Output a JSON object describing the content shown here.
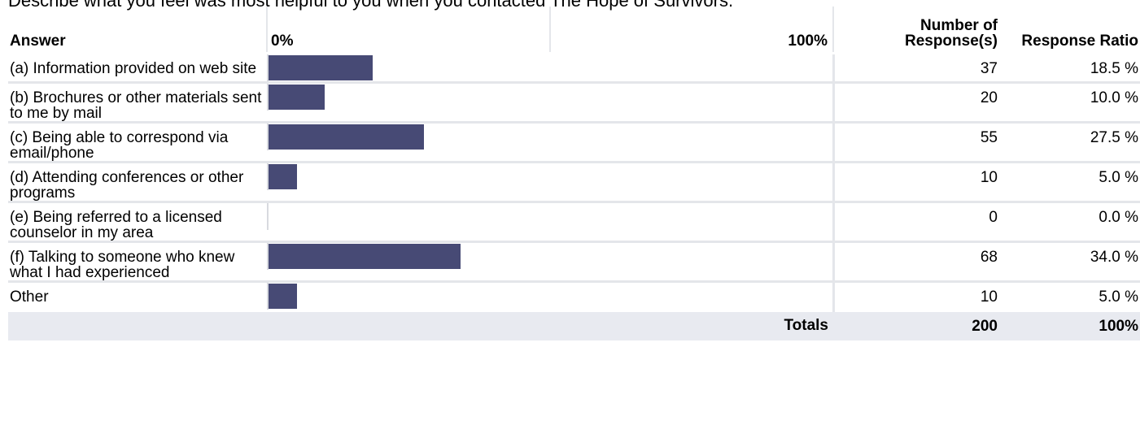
{
  "question": "Describe what you feel was most helpful to you when you contacted The Hope of Survivors.",
  "headers": {
    "answer": "Answer",
    "zero": "0%",
    "hundred": "100%",
    "count": "Number of Response(s)",
    "ratio": "Response Ratio"
  },
  "rows": [
    {
      "answer": "(a) Information provided on web site",
      "count": "37",
      "ratio": "18.5 %"
    },
    {
      "answer": "(b) Brochures or other materials sent to me by mail",
      "count": "20",
      "ratio": "10.0 %"
    },
    {
      "answer": "(c) Being able to correspond via email/phone",
      "count": "55",
      "ratio": "27.5 %"
    },
    {
      "answer": "(d) Attending conferences or other programs",
      "count": "10",
      "ratio": "5.0 %"
    },
    {
      "answer": "(e) Being referred to a licensed counselor in my area",
      "count": "0",
      "ratio": "0.0 %"
    },
    {
      "answer": "(f) Talking to someone who knew what I had experienced",
      "count": "68",
      "ratio": "34.0 %"
    },
    {
      "answer": "Other",
      "count": "10",
      "ratio": "5.0 %"
    }
  ],
  "totals": {
    "label": "Totals",
    "count": "200",
    "ratio": "100%"
  },
  "chart_data": {
    "type": "bar",
    "orientation": "horizontal",
    "categories": [
      "(a) Information provided on web site",
      "(b) Brochures or other materials sent to me by mail",
      "(c) Being able to correspond via email/phone",
      "(d) Attending conferences or other programs",
      "(e) Being referred to a licensed counselor in my area",
      "(f) Talking to someone who knew what I had experienced",
      "Other"
    ],
    "values": [
      18.5,
      10.0,
      27.5,
      5.0,
      0.0,
      34.0,
      5.0
    ],
    "counts": [
      37,
      20,
      55,
      10,
      0,
      68,
      10
    ],
    "xlim": [
      0,
      100
    ],
    "bar_color": "#474a75"
  }
}
